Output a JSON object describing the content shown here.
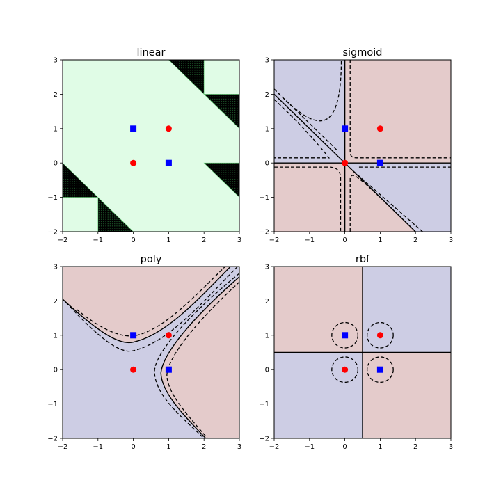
{
  "chart_data": [
    {
      "type": "scatter",
      "title": "linear",
      "xlabel": "",
      "ylabel": "",
      "xlim": [
        -2,
        3
      ],
      "ylim": [
        -2,
        3
      ],
      "xticks": [
        "−2",
        "−1",
        "0",
        "1",
        "2",
        "3"
      ],
      "yticks": [
        "−2",
        "−1",
        "0",
        "1",
        "2",
        "3"
      ],
      "grid": false,
      "background": "#e0fce6",
      "region_colors": {
        "positive": "#e0fce6",
        "negative": "#000000"
      },
      "series": [
        {
          "marker": "circle",
          "color": "#ff0000",
          "points": [
            [
              0,
              0
            ],
            [
              1,
              1
            ]
          ]
        },
        {
          "marker": "square",
          "color": "#0000ff",
          "points": [
            [
              0,
              1
            ],
            [
              1,
              0
            ]
          ]
        }
      ],
      "regions": [
        [
          [
            1,
            3
          ],
          [
            2,
            3
          ],
          [
            2,
            2
          ]
        ],
        [
          [
            2,
            2
          ],
          [
            3,
            2
          ],
          [
            3,
            1
          ]
        ],
        [
          [
            2,
            0
          ],
          [
            3,
            0
          ],
          [
            3,
            -1
          ]
        ],
        [
          [
            -2,
            0
          ],
          [
            -2,
            -1
          ],
          [
            -1,
            -1
          ]
        ],
        [
          [
            -1,
            -1
          ],
          [
            -1,
            -2
          ],
          [
            0,
            -2
          ]
        ]
      ]
    },
    {
      "type": "scatter",
      "title": "sigmoid",
      "xlabel": "",
      "ylabel": "",
      "xlim": [
        -2,
        3
      ],
      "ylim": [
        -2,
        3
      ],
      "xticks": [
        "−2",
        "−1",
        "0",
        "1",
        "2",
        "3"
      ],
      "yticks": [
        "−2",
        "−1",
        "0",
        "1",
        "2",
        "3"
      ],
      "grid": false,
      "region_colors": {
        "class_a": "#cdcde4",
        "class_b": "#e4cbcb"
      },
      "series": [
        {
          "marker": "circle",
          "color": "#ff0000",
          "points": [
            [
              0,
              0
            ],
            [
              1,
              1
            ]
          ]
        },
        {
          "marker": "square",
          "color": "#0000ff",
          "points": [
            [
              0,
              1
            ],
            [
              1,
              0
            ]
          ]
        }
      ],
      "decision_boundary": "x = 0; y = 0; y = -x",
      "margin_levels": [
        -1,
        1
      ]
    },
    {
      "type": "scatter",
      "title": "poly",
      "xlabel": "",
      "ylabel": "",
      "xlim": [
        -2,
        3
      ],
      "ylim": [
        -2,
        3
      ],
      "xticks": [
        "−2",
        "−1",
        "0",
        "1",
        "2",
        "3"
      ],
      "yticks": [
        "−2",
        "−1",
        "0",
        "1",
        "2",
        "3"
      ],
      "grid": false,
      "region_colors": {
        "class_a": "#cdcde4",
        "class_b": "#e4cbcb"
      },
      "series": [
        {
          "marker": "circle",
          "color": "#ff0000",
          "points": [
            [
              0,
              0
            ],
            [
              1,
              1
            ]
          ]
        },
        {
          "marker": "square",
          "color": "#0000ff",
          "points": [
            [
              0,
              1
            ],
            [
              1,
              0
            ]
          ]
        }
      ],
      "decision_boundary": "(x - 0.5)^2 - (y - 0.5)^2 = c",
      "margin_levels": [
        -1,
        1
      ]
    },
    {
      "type": "scatter",
      "title": "rbf",
      "xlabel": "",
      "ylabel": "",
      "xlim": [
        -2,
        3
      ],
      "ylim": [
        -2,
        3
      ],
      "xticks": [
        "−2",
        "−1",
        "0",
        "1",
        "2",
        "3"
      ],
      "yticks": [
        "−2",
        "−1",
        "0",
        "1",
        "2",
        "3"
      ],
      "grid": false,
      "region_colors": {
        "class_a": "#cdcde4",
        "class_b": "#e4cbcb"
      },
      "series": [
        {
          "marker": "circle",
          "color": "#ff0000",
          "points": [
            [
              0,
              0
            ],
            [
              1,
              1
            ]
          ]
        },
        {
          "marker": "square",
          "color": "#0000ff",
          "points": [
            [
              0,
              1
            ],
            [
              1,
              0
            ]
          ]
        }
      ],
      "decision_boundary": "x = 0.5; y = 0.5",
      "margin_circles": {
        "center_points": [
          [
            0,
            0
          ],
          [
            0,
            1
          ],
          [
            1,
            0
          ],
          [
            1,
            1
          ]
        ],
        "radius": 0.33
      }
    }
  ]
}
